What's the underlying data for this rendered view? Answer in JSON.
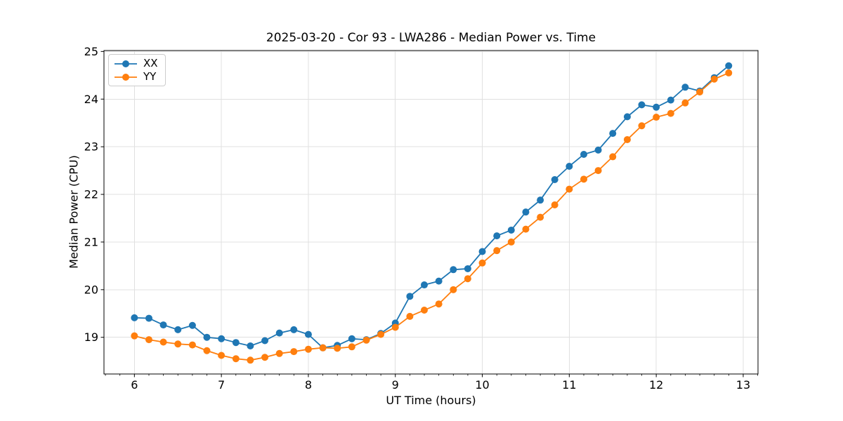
{
  "chart_data": {
    "type": "line",
    "title": "2025-03-20 - Cor 93 - LWA286 - Median Power vs. Time",
    "xlabel": "UT Time (hours)",
    "ylabel": "Median Power (CPU)",
    "xlim": [
      5.65,
      13.17
    ],
    "ylim": [
      18.23,
      25.02
    ],
    "x_ticks": [
      6,
      7,
      8,
      9,
      10,
      11,
      12,
      13
    ],
    "y_ticks": [
      19,
      20,
      21,
      22,
      23,
      24,
      25
    ],
    "x_minor_tick_step": 0.16667,
    "grid": true,
    "grid_color": "#e0e0e0",
    "legend_position": "upper-left",
    "x": [
      6.0,
      6.167,
      6.333,
      6.5,
      6.667,
      6.833,
      7.0,
      7.167,
      7.333,
      7.5,
      7.667,
      7.833,
      8.0,
      8.167,
      8.333,
      8.5,
      8.667,
      8.833,
      9.0,
      9.167,
      9.333,
      9.5,
      9.667,
      9.833,
      10.0,
      10.167,
      10.333,
      10.5,
      10.667,
      10.833,
      11.0,
      11.167,
      11.333,
      11.5,
      11.667,
      11.833,
      12.0,
      12.167,
      12.333,
      12.5,
      12.667,
      12.833
    ],
    "series": [
      {
        "name": "XX",
        "color": "#1f77b4",
        "values": [
          19.41,
          19.4,
          19.26,
          19.16,
          19.25,
          19.0,
          18.97,
          18.89,
          18.82,
          18.93,
          19.09,
          19.16,
          19.06,
          18.78,
          18.83,
          18.97,
          18.95,
          19.08,
          19.3,
          19.86,
          20.1,
          20.18,
          20.42,
          20.44,
          20.8,
          21.13,
          21.25,
          21.63,
          21.88,
          22.31,
          22.59,
          22.84,
          22.93,
          23.28,
          23.63,
          23.88,
          23.83,
          23.98,
          24.25,
          24.17,
          24.45,
          24.7
        ]
      },
      {
        "name": "YY",
        "color": "#ff7f0e",
        "values": [
          19.03,
          18.95,
          18.9,
          18.86,
          18.84,
          18.72,
          18.62,
          18.55,
          18.52,
          18.58,
          18.66,
          18.7,
          18.75,
          18.78,
          18.77,
          18.8,
          18.94,
          19.06,
          19.21,
          19.44,
          19.57,
          19.7,
          20.0,
          20.23,
          20.56,
          20.82,
          21.0,
          21.27,
          21.52,
          21.78,
          22.11,
          22.32,
          22.5,
          22.79,
          23.15,
          23.44,
          23.62,
          23.7,
          23.92,
          24.15,
          24.42,
          24.55
        ]
      }
    ]
  }
}
